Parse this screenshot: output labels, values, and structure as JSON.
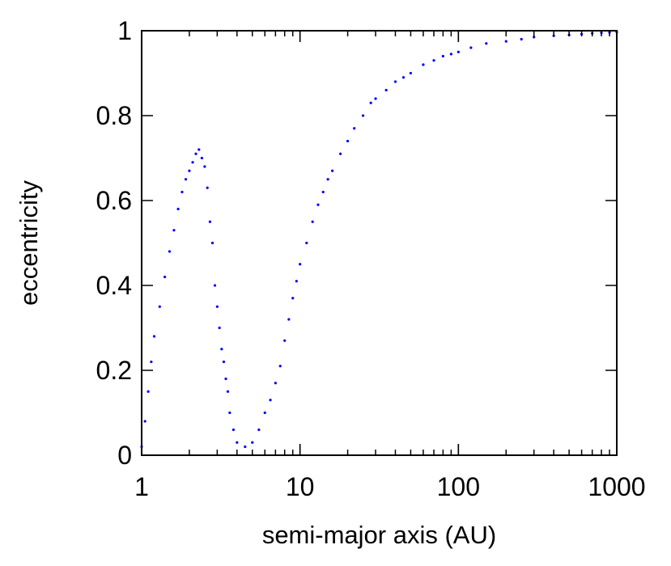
{
  "chart_data": {
    "type": "scatter",
    "xlabel": "semi-major axis (AU)",
    "ylabel": "eccentricity",
    "x_scale": "log",
    "xlim": [
      1,
      1000
    ],
    "ylim": [
      0,
      1
    ],
    "x_ticks": [
      "1",
      "10",
      "100",
      "1000"
    ],
    "y_ticks": [
      "0",
      "0.2",
      "0.4",
      "0.6",
      "0.8",
      "1"
    ],
    "grid": false,
    "marker_color": "#0000ff",
    "series": [
      {
        "x": [
          1.0,
          1.05,
          1.1,
          1.15,
          1.2,
          1.3,
          1.4,
          1.5,
          1.6,
          1.7,
          1.8,
          1.9,
          2.0,
          2.1,
          2.2,
          2.3,
          2.4,
          2.5,
          2.6,
          2.7,
          2.8,
          2.9,
          3.0,
          3.1,
          3.2,
          3.3,
          3.4,
          3.5,
          3.6,
          3.8,
          4.0,
          4.5,
          5.0,
          5.5,
          6.0,
          6.5,
          7.0,
          7.5,
          8.0,
          8.5,
          9.0,
          9.5,
          10,
          11,
          12,
          13,
          14,
          15,
          16,
          18,
          20,
          22,
          25,
          28,
          30,
          35,
          40,
          45,
          50,
          60,
          70,
          80,
          90,
          100,
          120,
          150,
          200,
          250,
          300,
          400,
          500,
          600,
          700,
          800,
          900,
          1000
        ],
        "y": [
          0.02,
          0.08,
          0.15,
          0.22,
          0.28,
          0.35,
          0.42,
          0.48,
          0.53,
          0.58,
          0.62,
          0.65,
          0.67,
          0.69,
          0.71,
          0.72,
          0.7,
          0.68,
          0.63,
          0.55,
          0.5,
          0.4,
          0.35,
          0.3,
          0.25,
          0.22,
          0.18,
          0.15,
          0.1,
          0.06,
          0.03,
          0.02,
          0.03,
          0.06,
          0.1,
          0.13,
          0.17,
          0.21,
          0.27,
          0.32,
          0.37,
          0.41,
          0.45,
          0.5,
          0.55,
          0.59,
          0.62,
          0.65,
          0.67,
          0.71,
          0.74,
          0.77,
          0.8,
          0.83,
          0.84,
          0.86,
          0.88,
          0.89,
          0.9,
          0.92,
          0.93,
          0.94,
          0.945,
          0.95,
          0.96,
          0.97,
          0.975,
          0.98,
          0.985,
          0.988,
          0.99,
          0.992,
          0.994,
          0.995,
          0.996,
          0.997
        ]
      }
    ]
  }
}
